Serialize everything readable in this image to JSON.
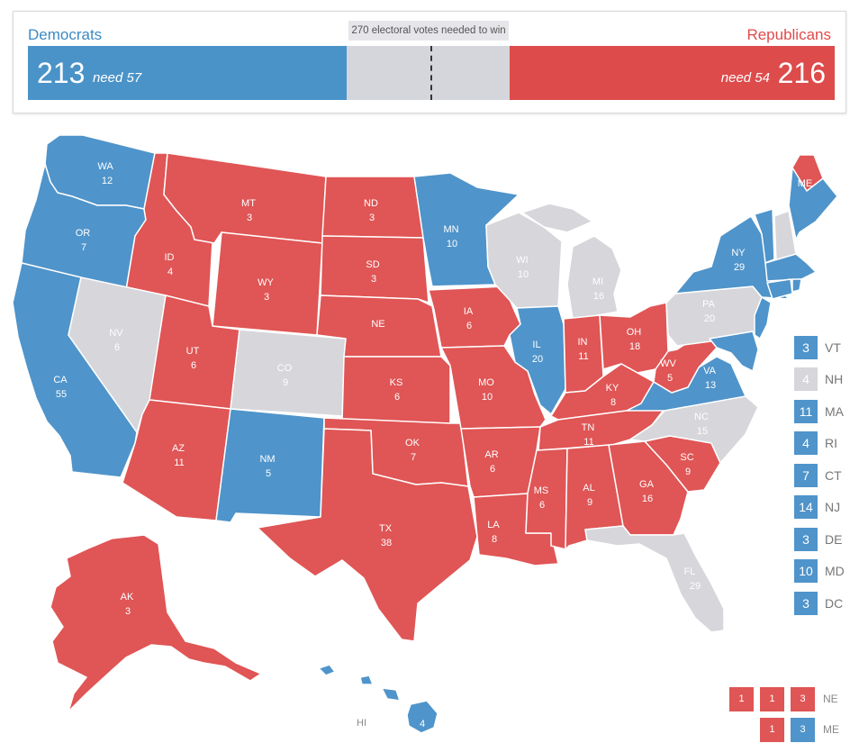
{
  "summary": {
    "dem_label": "Democrats",
    "rep_label": "Republicans",
    "threshold_label": "270 electoral votes needed to win",
    "dem_total": "213",
    "dem_need": "need 57",
    "rep_total": "216",
    "rep_need": "need 54"
  },
  "colors": {
    "democrat": "#4f94ca",
    "republican": "#e05555",
    "tossup": "#d6d6db"
  },
  "states": [
    {
      "abbr": "WA",
      "votes": "12",
      "party": "D"
    },
    {
      "abbr": "OR",
      "votes": "7",
      "party": "D"
    },
    {
      "abbr": "CA",
      "votes": "55",
      "party": "D"
    },
    {
      "abbr": "ID",
      "votes": "4",
      "party": "R"
    },
    {
      "abbr": "NV",
      "votes": "6",
      "party": "T"
    },
    {
      "abbr": "MT",
      "votes": "3",
      "party": "R"
    },
    {
      "abbr": "WY",
      "votes": "3",
      "party": "R"
    },
    {
      "abbr": "UT",
      "votes": "6",
      "party": "R"
    },
    {
      "abbr": "AZ",
      "votes": "11",
      "party": "R"
    },
    {
      "abbr": "CO",
      "votes": "9",
      "party": "T"
    },
    {
      "abbr": "NM",
      "votes": "5",
      "party": "D"
    },
    {
      "abbr": "ND",
      "votes": "3",
      "party": "R"
    },
    {
      "abbr": "SD",
      "votes": "3",
      "party": "R"
    },
    {
      "abbr": "NE",
      "votes": "",
      "party": "R"
    },
    {
      "abbr": "KS",
      "votes": "6",
      "party": "R"
    },
    {
      "abbr": "OK",
      "votes": "7",
      "party": "R"
    },
    {
      "abbr": "TX",
      "votes": "38",
      "party": "R"
    },
    {
      "abbr": "MN",
      "votes": "10",
      "party": "D"
    },
    {
      "abbr": "IA",
      "votes": "6",
      "party": "R"
    },
    {
      "abbr": "MO",
      "votes": "10",
      "party": "R"
    },
    {
      "abbr": "AR",
      "votes": "6",
      "party": "R"
    },
    {
      "abbr": "LA",
      "votes": "8",
      "party": "R"
    },
    {
      "abbr": "WI",
      "votes": "10",
      "party": "T"
    },
    {
      "abbr": "IL",
      "votes": "20",
      "party": "D"
    },
    {
      "abbr": "MI",
      "votes": "16",
      "party": "T"
    },
    {
      "abbr": "IN",
      "votes": "11",
      "party": "R"
    },
    {
      "abbr": "OH",
      "votes": "18",
      "party": "R"
    },
    {
      "abbr": "KY",
      "votes": "8",
      "party": "R"
    },
    {
      "abbr": "TN",
      "votes": "11",
      "party": "R"
    },
    {
      "abbr": "MS",
      "votes": "6",
      "party": "R"
    },
    {
      "abbr": "AL",
      "votes": "9",
      "party": "R"
    },
    {
      "abbr": "GA",
      "votes": "16",
      "party": "R"
    },
    {
      "abbr": "FL",
      "votes": "29",
      "party": "T"
    },
    {
      "abbr": "SC",
      "votes": "9",
      "party": "R"
    },
    {
      "abbr": "NC",
      "votes": "15",
      "party": "T"
    },
    {
      "abbr": "VA",
      "votes": "13",
      "party": "D"
    },
    {
      "abbr": "WV",
      "votes": "5",
      "party": "R"
    },
    {
      "abbr": "PA",
      "votes": "20",
      "party": "T"
    },
    {
      "abbr": "NY",
      "votes": "29",
      "party": "D"
    },
    {
      "abbr": "ME",
      "votes": "",
      "party": "D"
    },
    {
      "abbr": "AK",
      "votes": "3",
      "party": "R"
    },
    {
      "abbr": "HI",
      "votes": "4",
      "party": "D"
    }
  ],
  "small_states": [
    {
      "abbr": "VT",
      "votes": "3",
      "party": "D"
    },
    {
      "abbr": "NH",
      "votes": "4",
      "party": "T"
    },
    {
      "abbr": "MA",
      "votes": "11",
      "party": "D"
    },
    {
      "abbr": "RI",
      "votes": "4",
      "party": "D"
    },
    {
      "abbr": "CT",
      "votes": "7",
      "party": "D"
    },
    {
      "abbr": "NJ",
      "votes": "14",
      "party": "D"
    },
    {
      "abbr": "DE",
      "votes": "3",
      "party": "D"
    },
    {
      "abbr": "MD",
      "votes": "10",
      "party": "D"
    },
    {
      "abbr": "DC",
      "votes": "3",
      "party": "D"
    }
  ],
  "split_districts": [
    {
      "abbr": "NE",
      "votes": [
        "1",
        "1",
        "3"
      ],
      "parties": [
        "R",
        "R",
        "R"
      ]
    },
    {
      "abbr": "ME",
      "votes": [
        "1",
        "3"
      ],
      "parties": [
        "R",
        "D"
      ]
    }
  ]
}
